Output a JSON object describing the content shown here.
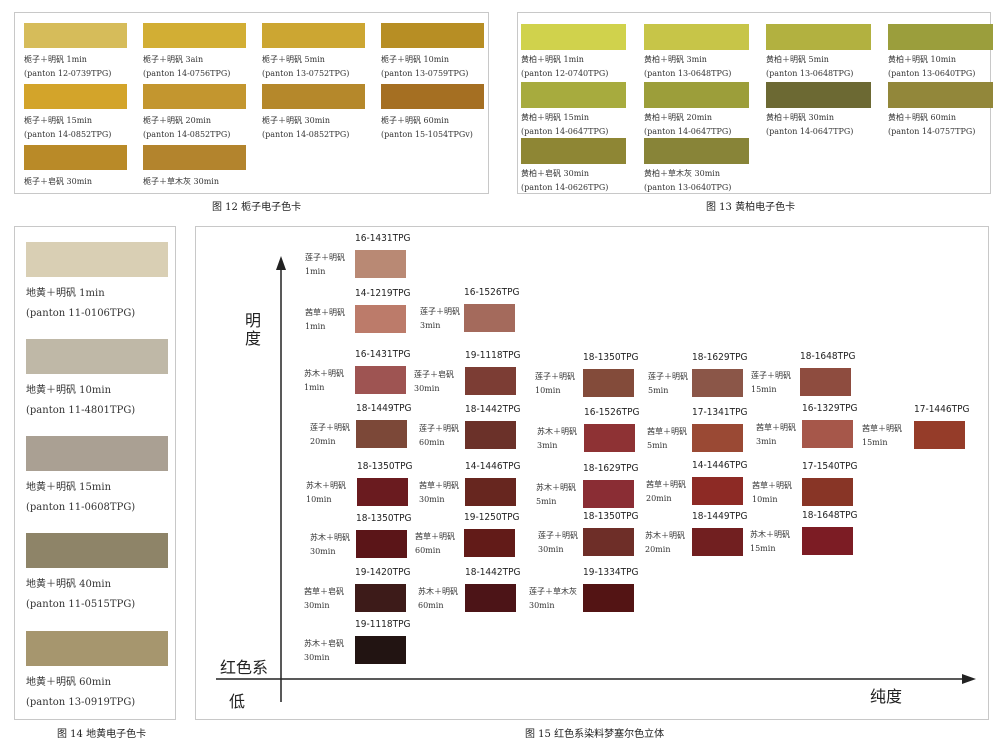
{
  "fig12": {
    "caption": "图 12 栀子电子色卡",
    "swatches": [
      {
        "name": "栀子＋明矾 1min",
        "code": "(panton 12-0739TPG)",
        "color": "#d6bc5a"
      },
      {
        "name": "栀子＋明矾 3ain",
        "code": "(panton 14-0756TPG)",
        "color": "#d2ae34"
      },
      {
        "name": "栀子＋明矾 5min",
        "code": "(panton 13-0752TPG)",
        "color": "#cca632"
      },
      {
        "name": "栀子＋明矾 10min",
        "code": "(panton 13-0759TPG)",
        "color": "#b78e24"
      },
      {
        "name": "栀子＋明矾 15min",
        "code": "(panton 14-0852TPG)",
        "color": "#d3a42a"
      },
      {
        "name": "栀子＋明矾 20min",
        "code": "(panton 14-0852TPG)",
        "color": "#c3962f"
      },
      {
        "name": "栀子＋明矾 30min",
        "code": "(panton 14-0852TPG)",
        "color": "#b5882b"
      },
      {
        "name": "栀子＋明矾 60min",
        "code": "(panton 15-1054TPGv)",
        "color": "#a56f22"
      },
      {
        "name": "栀子＋皂矾 30min",
        "code": "",
        "color": "#b98a28"
      },
      {
        "name": "栀子＋草木灰 30min",
        "code": "",
        "color": "#b3842d"
      }
    ]
  },
  "fig13": {
    "caption": "图 13 黄柏电子色卡",
    "swatches": [
      {
        "name": "黄柏＋明矾 1min",
        "code": "(panton 12-0740TPG)",
        "color": "#d0d24c"
      },
      {
        "name": "黄柏＋明矾 3min",
        "code": "(panton 13-0648TPG)",
        "color": "#c7c548"
      },
      {
        "name": "黄柏＋明矾 5min",
        "code": "(panton 13-0648TPG)",
        "color": "#b2b140"
      },
      {
        "name": "黄柏＋明矾 10min",
        "code": "(panton 13-0640TPG)",
        "color": "#9b9e3c"
      },
      {
        "name": "黄柏＋明矾 15min",
        "code": "(panton 14-0647TPG)",
        "color": "#a7ab3e"
      },
      {
        "name": "黄柏＋明矾 20min",
        "code": "(panton 14-0647TPG)",
        "color": "#9c9e3a"
      },
      {
        "name": "黄柏＋明矾 30min",
        "code": "(panton 14-0647TPG)",
        "color": "#6c6933"
      },
      {
        "name": "黄柏＋明矾 60min",
        "code": "(panton 14-0757TPG)",
        "color": "#92873a"
      },
      {
        "name": "黄柏＋皂矾 30min",
        "code": "(panton 14-0626TPG)",
        "color": "#8e8634"
      },
      {
        "name": "黄柏＋草木灰 30min",
        "code": "(panton 13-0640TPG)",
        "color": "#888438"
      }
    ]
  },
  "fig14": {
    "caption": "图 14 地黄电子色卡",
    "swatches": [
      {
        "name": "地黄＋明矾 1min",
        "code": "(panton 11-0106TPG)",
        "color": "#d9cfb4"
      },
      {
        "name": "地黄＋明矾 10min",
        "code": "(panton 11-4801TPG)",
        "color": "#bfb8a7"
      },
      {
        "name": "地黄＋明矾 15min",
        "code": "(panton 11-0608TPG)",
        "color": "#aaa093"
      },
      {
        "name": "地黄＋明矾 40min",
        "code": "(panton 11-0515TPG)",
        "color": "#8e8468"
      },
      {
        "name": "地黄＋明矾 60min",
        "code": "(panton 13-0919TPG)",
        "color": "#a6966e"
      }
    ]
  },
  "fig15": {
    "caption": "图 15 红色系染料梦塞尔色立体",
    "axis_y_label": "明度",
    "axis_x_label": "纯度",
    "origin_top": "红色系",
    "origin_low": "低",
    "cells": [
      {
        "code": "16-1431TPG",
        "l1": "莲子＋明矾",
        "l2": "1min",
        "color": "#b98974"
      },
      {
        "code": "14-1219TPG",
        "l1": "茜草＋明矾",
        "l2": "1min",
        "color": "#bc7b6a"
      },
      {
        "code": "16-1526TPG",
        "l1": "莲子＋明矾",
        "l2": "3min",
        "color": "#a46a5c"
      },
      {
        "code": "16-1431TPG",
        "l1": "苏木＋明矾",
        "l2": "1min",
        "color": "#9e5452"
      },
      {
        "code": "19-1118TPG",
        "l1": "莲子＋皂矾",
        "l2": "30min",
        "color": "#7c3d34"
      },
      {
        "code": "18-1350TPG",
        "l1": "莲子＋明矾",
        "l2": "10min",
        "color": "#834b3a"
      },
      {
        "code": "18-1629TPG",
        "l1": "莲子＋明矾",
        "l2": "5min",
        "color": "#8b5648"
      },
      {
        "code": "18-1648TPG",
        "l1": "莲子＋明矾",
        "l2": "15min",
        "color": "#8e4c3f"
      },
      {
        "code": "18-1449TPG",
        "l1": "莲子＋明矾",
        "l2": "20min",
        "color": "#7c4838"
      },
      {
        "code": "18-1442TPG",
        "l1": "莲子＋明矾",
        "l2": "60min",
        "color": "#6b3129"
      },
      {
        "code": "16-1526TPG",
        "l1": "苏木＋明矾",
        "l2": "3min",
        "color": "#8e3234"
      },
      {
        "code": "17-1341TPG",
        "l1": "茜草＋明矾",
        "l2": "5min",
        "color": "#9a4934"
      },
      {
        "code": "16-1329TPG",
        "l1": "茜草＋明矾",
        "l2": "3min",
        "color": "#a6574a"
      },
      {
        "code": "17-1446TPG",
        "l1": "茜草＋明矾",
        "l2": "15min",
        "color": "#953c29"
      },
      {
        "code": "18-1350TPG",
        "l1": "苏木＋明矾",
        "l2": "10min",
        "color": "#6a1b1f"
      },
      {
        "code": "14-1446TPG",
        "l1": "茜草＋明矾",
        "l2": "30min",
        "color": "#67261f"
      },
      {
        "code": "18-1629TPG",
        "l1": "苏木＋明矾",
        "l2": "5min",
        "color": "#8a2d34"
      },
      {
        "code": "14-1446TPG",
        "l1": "茜草＋明矾",
        "l2": "20min",
        "color": "#8d2a25"
      },
      {
        "code": "17-1540TPG",
        "l1": "茜草＋明矾",
        "l2": "10min",
        "color": "#883526"
      },
      {
        "code": "18-1350TPG",
        "l1": "苏木＋明矾",
        "l2": "30min",
        "color": "#5b1518"
      },
      {
        "code": "19-1250TPG",
        "l1": "茜草＋明矾",
        "l2": "60min",
        "color": "#621b18"
      },
      {
        "code": "18-1350TPG",
        "l1": "莲子＋明矾",
        "l2": "30min",
        "color": "#6e2e28"
      },
      {
        "code": "18-1449TPG",
        "l1": "苏木＋明矾",
        "l2": "20min",
        "color": "#711f20"
      },
      {
        "code": "18-1648TPG",
        "l1": "苏木＋明矾",
        "l2": "15min",
        "color": "#7c1c24"
      },
      {
        "code": "19-1420TPG",
        "l1": "茜草＋皂矾",
        "l2": "30min",
        "color": "#3d1b19"
      },
      {
        "code": "18-1442TPG",
        "l1": "苏木＋明矾",
        "l2": "60min",
        "color": "#4c1417"
      },
      {
        "code": "19-1334TPG",
        "l1": "莲子＋草木灰",
        "l2": "30min",
        "color": "#531414"
      },
      {
        "code": "19-1118TPG",
        "l1": "苏木＋皂矾",
        "l2": "30min",
        "color": "#221412"
      }
    ]
  }
}
